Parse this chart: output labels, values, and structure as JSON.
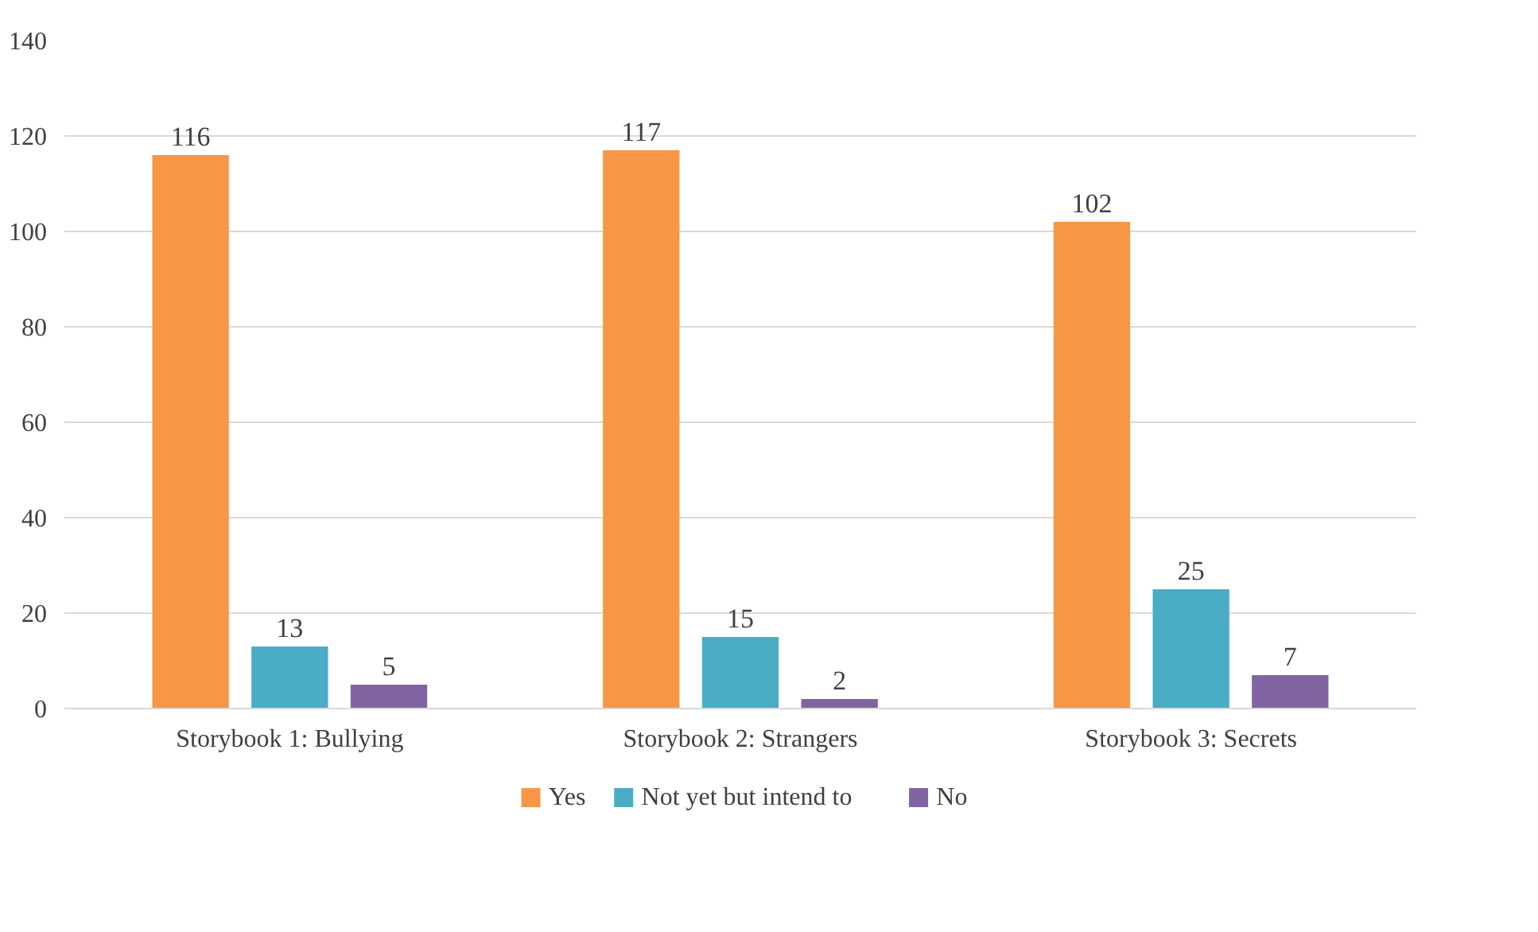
{
  "chart_data": {
    "type": "bar",
    "categories": [
      "Storybook 1: Bullying",
      "Storybook 2: Strangers",
      "Storybook 3: Secrets"
    ],
    "series": [
      {
        "name": "Yes",
        "color": "#f79646",
        "values": [
          116,
          117,
          102
        ]
      },
      {
        "name": "Not yet but intend to",
        "color": "#4bacc6",
        "values": [
          13,
          15,
          25
        ]
      },
      {
        "name": "No",
        "color": "#8064a2",
        "values": [
          5,
          2,
          7
        ]
      }
    ],
    "ylim": [
      0,
      140
    ],
    "yticks": [
      0,
      20,
      40,
      60,
      80,
      100,
      120,
      140
    ],
    "grid": "y",
    "legend": "bottom",
    "data_labels": true
  }
}
